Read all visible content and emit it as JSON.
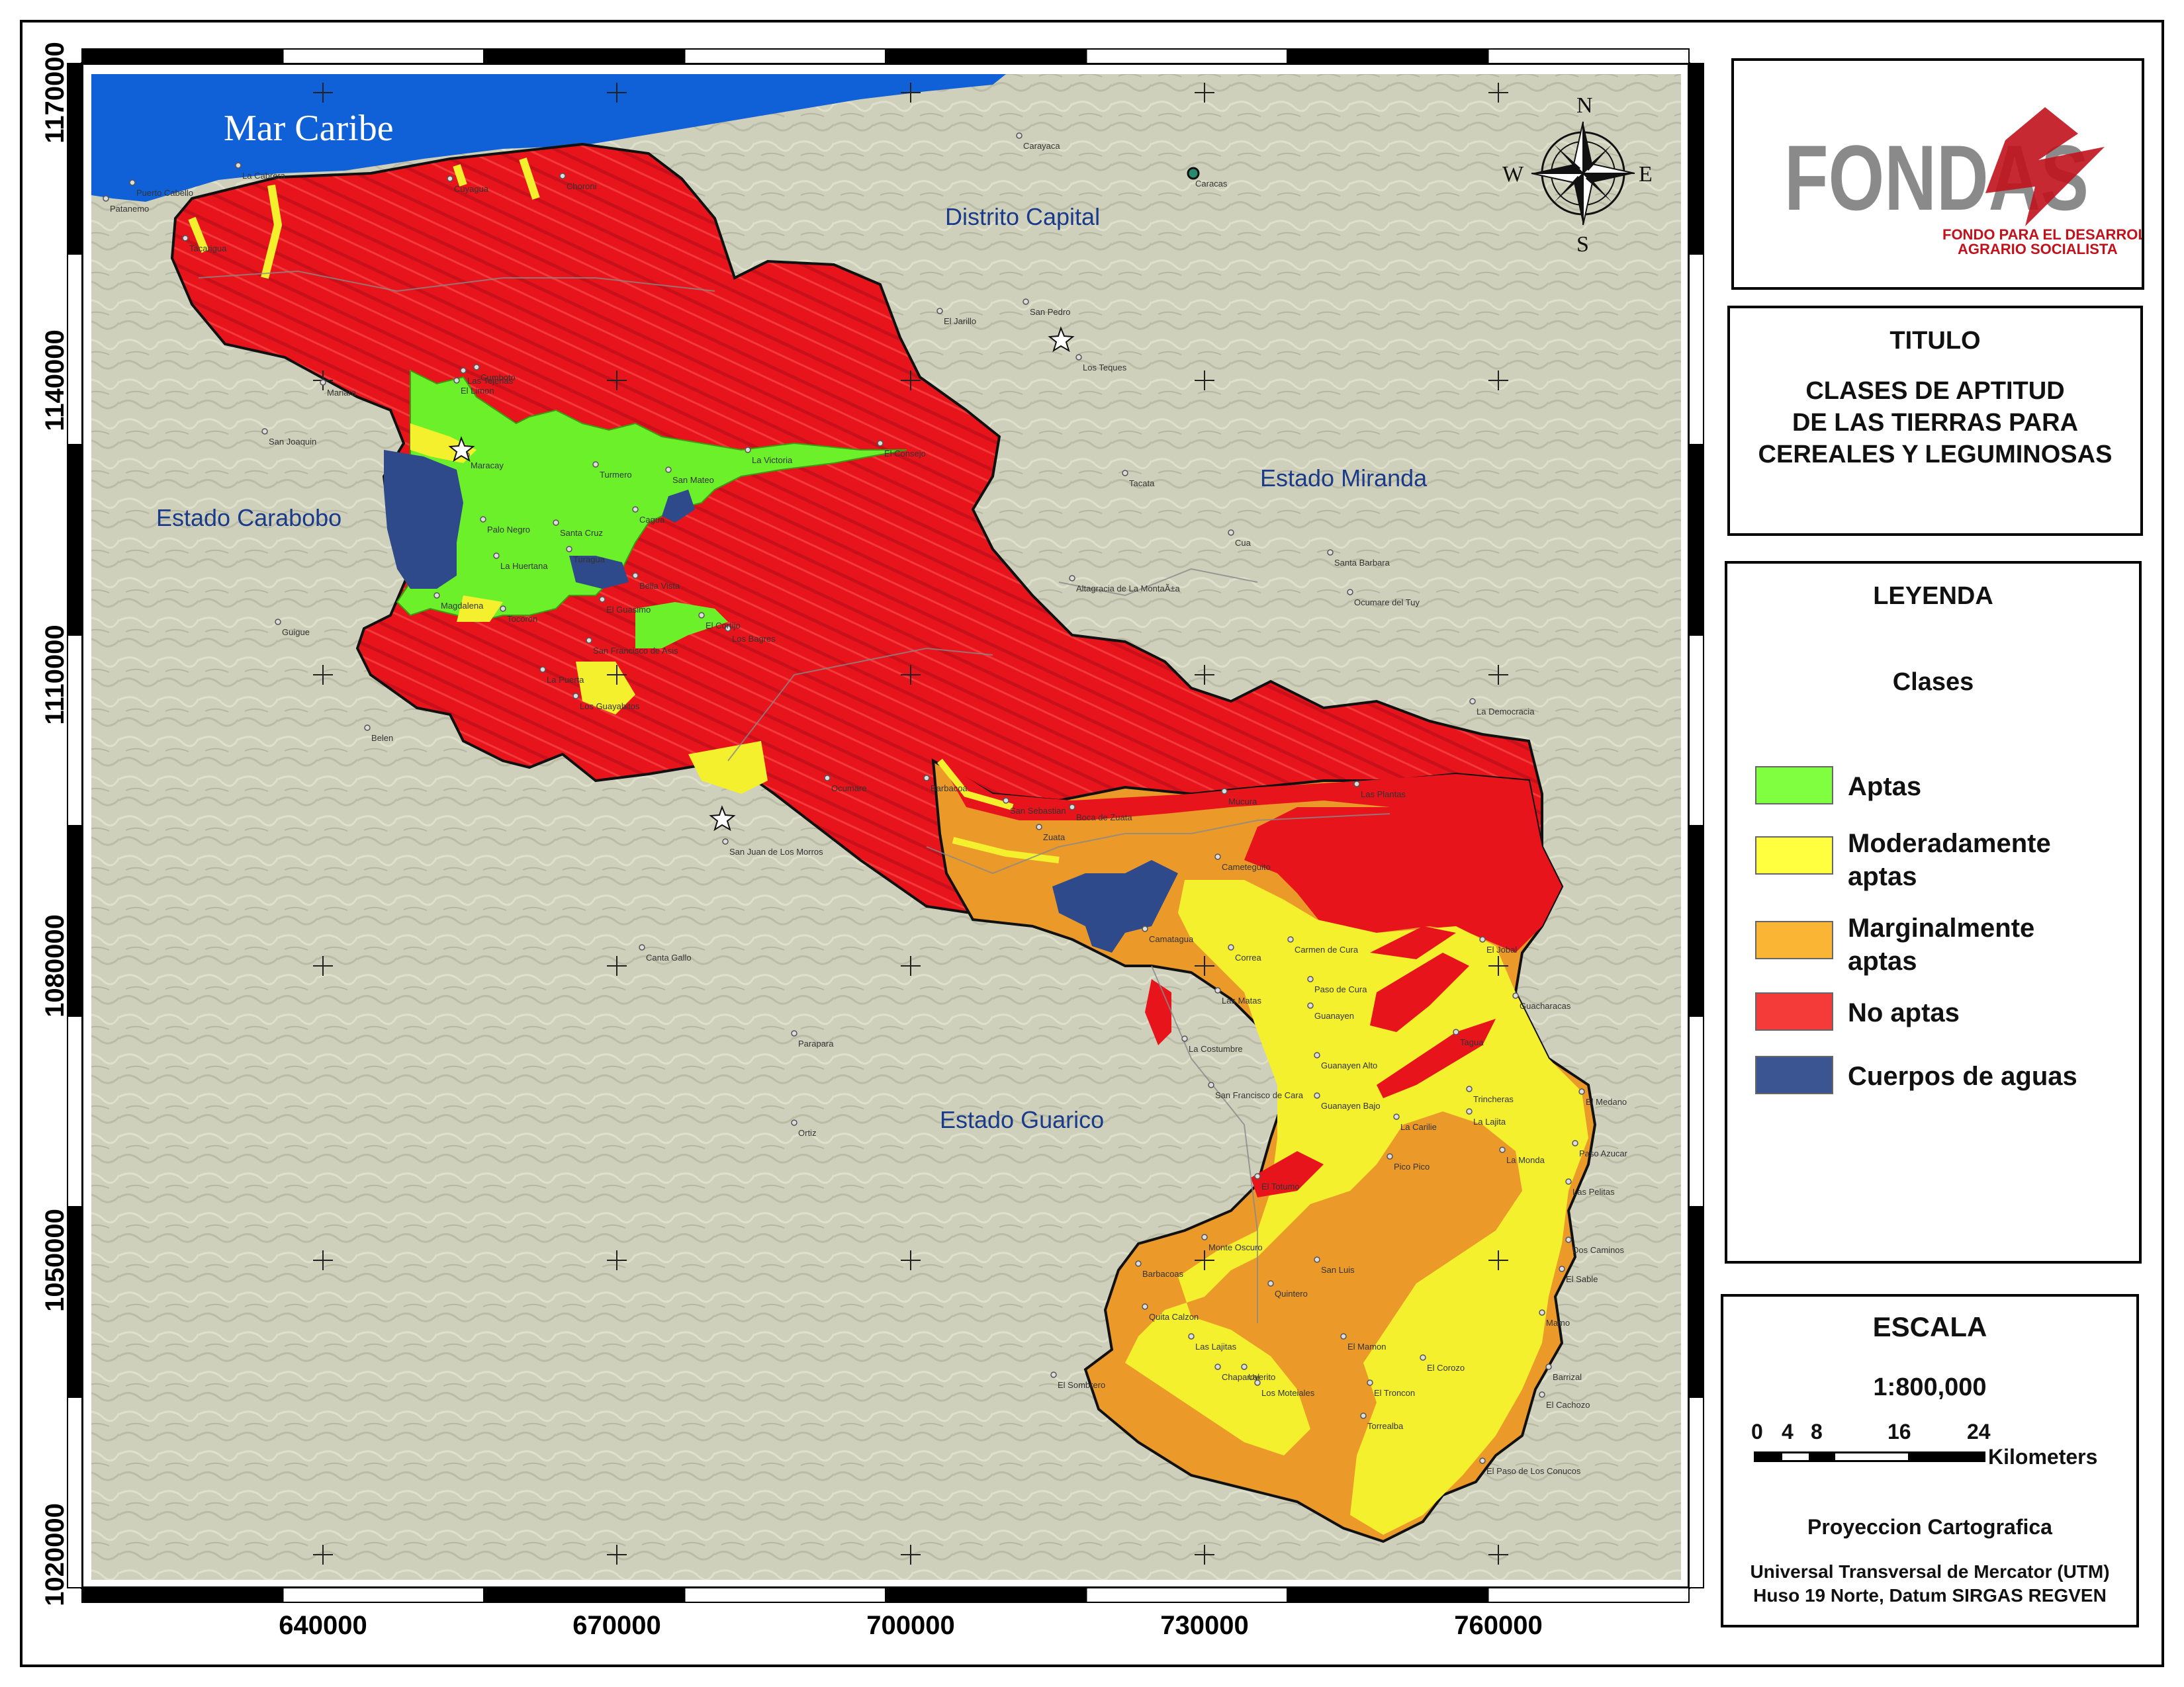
{
  "map": {
    "sea_label": "Mar Caribe",
    "region_labels": [
      {
        "id": "distrito",
        "text": "Distrito Capital"
      },
      {
        "id": "miranda",
        "text": "Estado Miranda"
      },
      {
        "id": "carabobo",
        "text": "Estado Carabobo"
      },
      {
        "id": "guarico",
        "text": "Estado Guarico"
      }
    ],
    "x_ticks": [
      "640000",
      "670000",
      "700000",
      "730000",
      "760000"
    ],
    "y_ticks": [
      "1170000",
      "1140000",
      "1110000",
      "1080000",
      "1050000",
      "1020000"
    ],
    "compass": {
      "n": "N",
      "s": "S",
      "e": "E",
      "w": "W"
    },
    "towns": [
      "Carayaca",
      "Caracas",
      "El Jarillo",
      "San Pedro",
      "Los Teques",
      "Mariara",
      "San Joaquin",
      "Tacata",
      "Cua",
      "Santa Barbara",
      "Ocumare del Tuy",
      "Altagracia de La MontaÃ±a",
      "Guigue",
      "Belen",
      "La Democracia",
      "San Juan de Los Morros",
      "Canta Gallo",
      "Parapara",
      "Ortiz",
      "El Sombrero",
      "Maracay",
      "Turmero",
      "Cagua",
      "La Victoria",
      "El Consejo",
      "San Mateo",
      "Santa Cruz",
      "Palo Negro",
      "Turagua",
      "La Huertana",
      "Magdalena",
      "Tocoron",
      "Bella Vista",
      "El Guasimo",
      "Camatagua",
      "Carmen de Cura",
      "Correa",
      "Las Matas",
      "Paso de Cura",
      "Guanayen",
      "La Costumbre",
      "San Francisco de Cara",
      "Guanayen Alto",
      "Guanayen Bajo",
      "La Carilie",
      "Pico Pico",
      "El Totumo",
      "Monte Oscuro",
      "Barbacoas",
      "Quita Calzon",
      "San Luis",
      "Quintero",
      "Las Lajitas",
      "Chaparral",
      "Uverito",
      "Los Moteiales",
      "El Mamon",
      "El Troncon",
      "El Corozo",
      "Torrealba",
      "Trincheras",
      "La Lajita",
      "La Monda",
      "El Medano",
      "Paso Azucar",
      "Las Pelitas",
      "Dos Caminos",
      "El Sable",
      "Mamo",
      "Barrizal",
      "El Cachozo",
      "El Paso de Los Conucos",
      "Guacharacas",
      "Tagua",
      "El Jobal",
      "Mucura",
      "Boca de Zuata",
      "Zuata",
      "San Sebastian",
      "Barbacoa",
      "Ocumare",
      "Choroni",
      "Cuyagua",
      "La Cabrera",
      "El Limon",
      "Las Tejerias",
      "La Puerta",
      "San Francisco de Asis",
      "Los Guayabitos",
      "Cumboto",
      "Puerto Cabello",
      "Patanemo",
      "Tacarigua",
      "Los Bagres",
      "El Cortijo",
      "Cameteguito",
      "Las Plantas"
    ]
  },
  "logo": {
    "name": "FONDAS",
    "subtitle_1": "FONDO PARA EL DESARROLLO",
    "subtitle_2": "AGRARIO SOCIALISTA"
  },
  "title_panel": {
    "heading": "TITULO",
    "line1": "CLASES DE APTITUD",
    "line2": "DE LAS TIERRAS PARA",
    "line3": "CEREALES Y LEGUMINOSAS"
  },
  "legend": {
    "heading": "LEYENDA",
    "subheading": "Clases",
    "items": [
      {
        "line1": "Aptas",
        "line2": "",
        "color": "#80ff40"
      },
      {
        "line1": "Moderadamente",
        "line2": "aptas",
        "color": "#ffff40"
      },
      {
        "line1": "Marginalmente",
        "line2": "aptas",
        "color": "#f5a623"
      },
      {
        "line1": "No aptas",
        "line2": "",
        "color": "#ee1e23"
      },
      {
        "line1": "Cuerpos de aguas",
        "line2": "",
        "color": "#2e4a8a"
      }
    ]
  },
  "scale": {
    "heading": "ESCALA",
    "ratio": "1:800,000",
    "ticks": [
      "0",
      "4",
      "8",
      "16",
      "24"
    ],
    "units": "Kilometers",
    "projection_heading": "Proyeccion Cartografica",
    "projection_line1": "Universal Transversal de Mercator (UTM)",
    "projection_line2": "Huso 19 Norte, Datum SIRGAS REGVEN"
  },
  "colors": {
    "aptas": "#80ff40",
    "moderadamente": "#ffff40",
    "marginalmente": "#f5a623",
    "no_aptas": "#ee1e23",
    "agua": "#2e4a8a",
    "mar": "#1060d8",
    "terrain": "#cfd0bb"
  }
}
